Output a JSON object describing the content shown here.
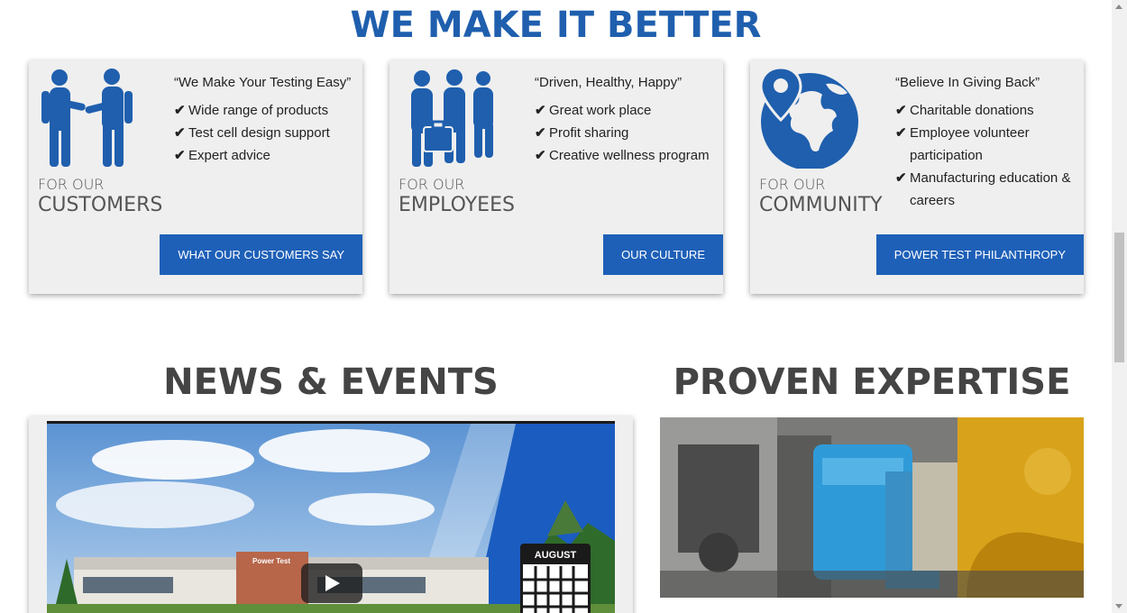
{
  "main_heading": "WE MAKE IT BETTER",
  "cards": [
    {
      "icon": "handshake-icon",
      "kicker": "FOR OUR",
      "title": "CUSTOMERS",
      "quote": "“We Make Your Testing Easy”",
      "items": [
        "Wide range of products",
        "Test cell design support",
        "Expert advice"
      ],
      "button": "WHAT OUR CUSTOMERS SAY"
    },
    {
      "icon": "employees-icon",
      "kicker": "FOR OUR",
      "title": "EMPLOYEES",
      "quote": "“Driven, Healthy, Happy”",
      "items": [
        "Great work place",
        "Profit sharing",
        "Creative wellness program"
      ],
      "button": "OUR CULTURE"
    },
    {
      "icon": "globe-pin-icon",
      "kicker": "FOR OUR",
      "title": "COMMUNITY",
      "quote": "“Believe In Giving Back”",
      "items": [
        "Charitable donations",
        "Employee volunteer participation",
        "Manufacturing education & careers"
      ],
      "button": "POWER TEST PHILANTHROPY"
    }
  ],
  "check_glyph": "✔",
  "news": {
    "heading": "NEWS & EVENTS",
    "video_icon": "play-icon",
    "calendar_month": "AUGUST",
    "building_sign": "Power Test"
  },
  "expertise": {
    "heading": "PROVEN EXPERTISE"
  },
  "colors": {
    "brand_blue": "#1f5fae",
    "button_blue": "#1e60b8",
    "card_bg": "#efefef",
    "heading_gray": "#444444"
  }
}
